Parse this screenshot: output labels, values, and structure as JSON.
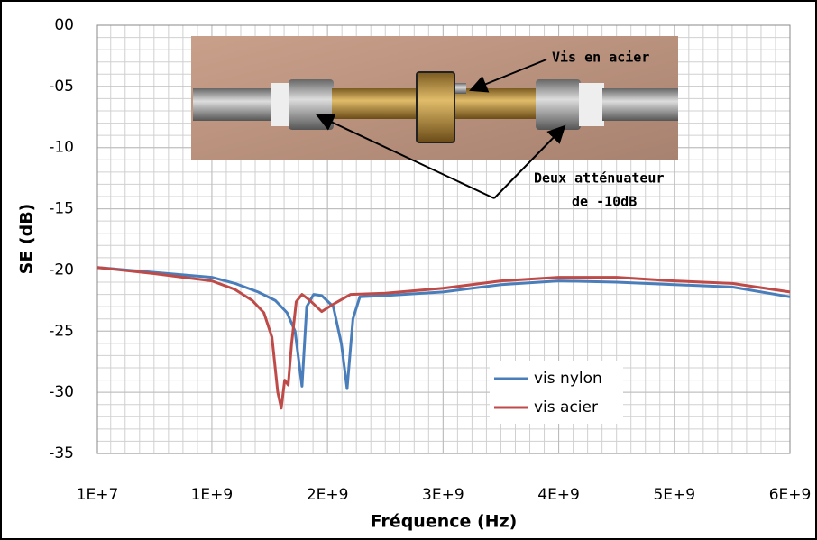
{
  "chart_data": {
    "type": "line",
    "ylabel": "SE (dB)",
    "xlabel": "Fréquence (Hz)",
    "xlim": [
      10000000,
      6000000000
    ],
    "xticks": [
      {
        "value": 10000000,
        "label": "1E+7"
      },
      {
        "value": 1000000000,
        "label": "1E+9"
      },
      {
        "value": 2000000000,
        "label": "2E+9"
      },
      {
        "value": 3000000000,
        "label": "3E+9"
      },
      {
        "value": 4000000000,
        "label": "4E+9"
      },
      {
        "value": 5000000000,
        "label": "5E+9"
      },
      {
        "value": 6000000000,
        "label": "6E+9"
      }
    ],
    "ylim": [
      -35,
      0
    ],
    "yticks": [
      {
        "value": 0,
        "label": "00"
      },
      {
        "value": -5,
        "label": "-05"
      },
      -10,
      -15,
      -20,
      -25,
      -30,
      -35
    ],
    "grid": true,
    "xminor_step": 125000000,
    "yminor_step": 1,
    "legend": "lower right",
    "annotations": [
      "Vis en acier",
      "Deux atténuateur",
      "de -10dB"
    ],
    "series": [
      {
        "name": "vis nylon",
        "color": "#4a7ebb",
        "x": [
          10000000,
          500000000,
          1000000000,
          1200000000,
          1400000000,
          1550000000,
          1650000000,
          1720000000,
          1780000000,
          1820000000,
          1880000000,
          1950000000,
          2050000000,
          2120000000,
          2170000000,
          2220000000,
          2280000000,
          2500000000,
          3000000000,
          3500000000,
          4000000000,
          4500000000,
          5000000000,
          5500000000,
          6000000000
        ],
        "values": [
          -19.8,
          -20.2,
          -20.6,
          -21.1,
          -21.8,
          -22.5,
          -23.5,
          -25,
          -29.5,
          -23,
          -22,
          -22.1,
          -23,
          -26,
          -29.7,
          -24,
          -22.2,
          -22.1,
          -21.8,
          -21.2,
          -20.9,
          -21,
          -21.2,
          -21.4,
          -22.2
        ]
      },
      {
        "name": "vis acier",
        "color": "#be4b48",
        "x": [
          10000000,
          500000000,
          1000000000,
          1200000000,
          1350000000,
          1450000000,
          1520000000,
          1570000000,
          1600000000,
          1630000000,
          1660000000,
          1690000000,
          1730000000,
          1780000000,
          1850000000,
          1950000000,
          2050000000,
          2200000000,
          2500000000,
          3000000000,
          3500000000,
          4000000000,
          4500000000,
          5000000000,
          5500000000,
          6000000000
        ],
        "values": [
          -19.8,
          -20.3,
          -20.9,
          -21.6,
          -22.5,
          -23.5,
          -25.5,
          -30,
          -31.3,
          -29,
          -29.4,
          -26,
          -22.6,
          -22,
          -22.5,
          -23.4,
          -22.8,
          -22,
          -21.9,
          -21.5,
          -20.9,
          -20.6,
          -20.6,
          -20.9,
          -21.1,
          -21.8
        ]
      }
    ]
  }
}
